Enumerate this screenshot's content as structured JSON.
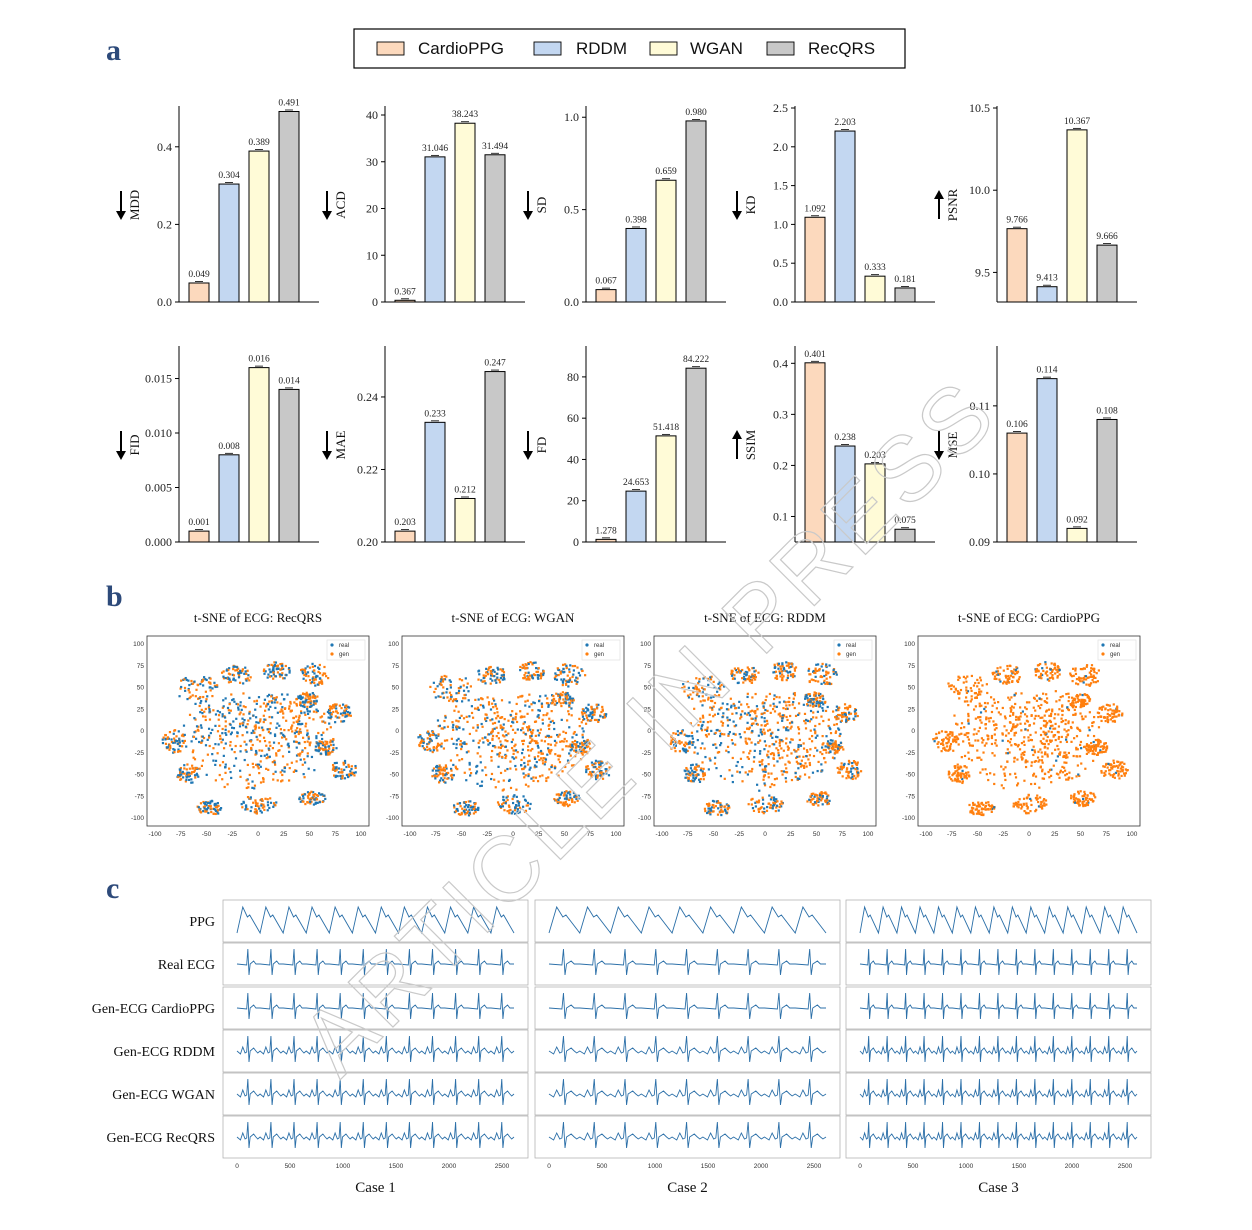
{
  "panels": {
    "a": "a",
    "b": "b",
    "c": "c"
  },
  "legend": [
    {
      "name": "CardioPPG",
      "color": "#fcd9bd"
    },
    {
      "name": "RDDM",
      "color": "#c3d7f1"
    },
    {
      "name": "WGAN",
      "color": "#fffbd7"
    },
    {
      "name": "RecQRS",
      "color": "#c8c8c8"
    }
  ],
  "watermark": "ARTICLE IN PRESS",
  "chart_data": [
    {
      "type": "bar",
      "metric": "MDD",
      "direction": "down",
      "categories": [
        "CardioPPG",
        "RDDM",
        "WGAN",
        "RecQRS"
      ],
      "values": [
        0.049,
        0.304,
        0.389,
        0.491
      ],
      "labels": [
        "0.049",
        "0.304",
        "0.389",
        "0.491"
      ],
      "ylim": [
        0,
        0.5
      ],
      "ticks": [
        0.0,
        0.2,
        0.4
      ],
      "tick_labels": [
        "0.0",
        "0.2",
        "0.4"
      ]
    },
    {
      "type": "bar",
      "metric": "ACD",
      "direction": "down",
      "categories": [
        "CardioPPG",
        "RDDM",
        "WGAN",
        "RecQRS"
      ],
      "values": [
        0.367,
        31.046,
        38.243,
        31.494
      ],
      "labels": [
        "0.367",
        "31.046",
        "38.243",
        "31.494"
      ],
      "ylim": [
        0,
        41.5
      ],
      "ticks": [
        0,
        10,
        20,
        30,
        40
      ],
      "tick_labels": [
        "0",
        "10",
        "20",
        "30",
        "40"
      ]
    },
    {
      "type": "bar",
      "metric": "SD",
      "direction": "down",
      "categories": [
        "CardioPPG",
        "RDDM",
        "WGAN",
        "RecQRS"
      ],
      "values": [
        0.067,
        0.398,
        0.659,
        0.98
      ],
      "labels": [
        "0.067",
        "0.398",
        "0.659",
        "0.980"
      ],
      "ylim": [
        0,
        1.05
      ],
      "ticks": [
        0.0,
        0.5,
        1.0
      ],
      "tick_labels": [
        "0.0",
        "0.5",
        "1.0"
      ]
    },
    {
      "type": "bar",
      "metric": "KD",
      "direction": "down",
      "categories": [
        "CardioPPG",
        "RDDM",
        "WGAN",
        "RecQRS"
      ],
      "values": [
        1.092,
        2.203,
        0.333,
        0.181
      ],
      "labels": [
        "1.092",
        "2.203",
        "0.333",
        "0.181"
      ],
      "ylim": [
        0,
        2.5
      ],
      "ticks": [
        0.0,
        0.5,
        1.0,
        1.5,
        2.0,
        2.5
      ],
      "tick_labels": [
        "0.0",
        "0.5",
        "1.0",
        "1.5",
        "2.0",
        "2.5"
      ]
    },
    {
      "type": "bar",
      "metric": "PSNR",
      "direction": "up",
      "categories": [
        "CardioPPG",
        "RDDM",
        "WGAN",
        "RecQRS"
      ],
      "values": [
        9.766,
        9.413,
        10.367,
        9.666
      ],
      "labels": [
        "9.766",
        "9.413",
        "10.367",
        "9.666"
      ],
      "ylim": [
        9.32,
        10.5
      ],
      "ticks": [
        9.5,
        10.0,
        10.5
      ],
      "tick_labels": [
        "9.5",
        "10.0",
        "10.5"
      ]
    },
    {
      "type": "bar",
      "metric": "FID",
      "direction": "down",
      "categories": [
        "CardioPPG",
        "RDDM",
        "WGAN",
        "RecQRS"
      ],
      "values": [
        0.001,
        0.008,
        0.016,
        0.014
      ],
      "labels": [
        "0.001",
        "0.008",
        "0.016",
        "0.014"
      ],
      "ylim": [
        0,
        0.0178
      ],
      "ticks": [
        0.0,
        0.005,
        0.01,
        0.015
      ],
      "tick_labels": [
        "0.000",
        "0.005",
        "0.010",
        "0.015"
      ]
    },
    {
      "type": "bar",
      "metric": "MAE",
      "direction": "down",
      "categories": [
        "CardioPPG",
        "RDDM",
        "WGAN",
        "RecQRS"
      ],
      "values": [
        0.203,
        0.233,
        0.212,
        0.247
      ],
      "labels": [
        "0.203",
        "0.233",
        "0.212",
        "0.247"
      ],
      "ylim": [
        0.2,
        0.2535
      ],
      "ticks": [
        0.2,
        0.22,
        0.24
      ],
      "tick_labels": [
        "0.20",
        "0.22",
        "0.24"
      ]
    },
    {
      "type": "bar",
      "metric": "FD",
      "direction": "down",
      "categories": [
        "CardioPPG",
        "RDDM",
        "WGAN",
        "RecQRS"
      ],
      "values": [
        1.278,
        24.653,
        51.418,
        84.222
      ],
      "labels": [
        "1.278",
        "24.653",
        "51.418",
        "84.222"
      ],
      "ylim": [
        0,
        94
      ],
      "ticks": [
        0,
        20,
        40,
        60,
        80
      ],
      "tick_labels": [
        "0",
        "20",
        "40",
        "60",
        "80"
      ]
    },
    {
      "type": "bar",
      "metric": "SSIM",
      "direction": "up",
      "categories": [
        "CardioPPG",
        "RDDM",
        "WGAN",
        "RecQRS"
      ],
      "values": [
        0.401,
        0.238,
        0.203,
        0.075
      ],
      "labels": [
        "0.401",
        "0.238",
        "0.203",
        "0.075"
      ],
      "ylim": [
        0.05,
        0.43
      ],
      "ticks": [
        0.1,
        0.2,
        0.3,
        0.4
      ],
      "tick_labels": [
        "0.1",
        "0.2",
        "0.3",
        "0.4"
      ]
    },
    {
      "type": "bar",
      "metric": "MSE",
      "direction": "down",
      "categories": [
        "CardioPPG",
        "RDDM",
        "WGAN",
        "RecQRS"
      ],
      "values": [
        0.106,
        0.114,
        0.092,
        0.108
      ],
      "labels": [
        "0.106",
        "0.114",
        "0.092",
        "0.108"
      ],
      "ylim": [
        0.09,
        0.1185
      ],
      "ticks": [
        0.09,
        0.1,
        0.11
      ],
      "tick_labels": [
        "0.09",
        "0.10",
        "0.11"
      ]
    }
  ],
  "tsne": {
    "titles": [
      "t-SNE of ECG: RecQRS",
      "t-SNE of ECG: WGAN",
      "t-SNE of ECG: RDDM",
      "t-SNE of ECG: CardioPPG"
    ],
    "legend": [
      "real",
      "gen"
    ],
    "real_color": "#1f77b4",
    "gen_color": "#ff7f0e",
    "xticks": [
      "-100",
      "-75",
      "-50",
      "-25",
      "0",
      "25",
      "50",
      "75",
      "100"
    ],
    "yticks": [
      "100",
      "75",
      "50",
      "25",
      "0",
      "-25",
      "-50",
      "-75",
      "-100"
    ]
  },
  "waveforms": {
    "rows": [
      "PPG",
      "Real ECG",
      "Gen-ECG CardioPPG",
      "Gen-ECG RDDM",
      "Gen-ECG WGAN",
      "Gen-ECG RecQRS"
    ],
    "cases": [
      "Case 1",
      "Case 2",
      "Case 3"
    ],
    "xticks": [
      "0",
      "500",
      "1000",
      "1500",
      "2000",
      "2500"
    ],
    "line_color": "#2b6fa8"
  }
}
